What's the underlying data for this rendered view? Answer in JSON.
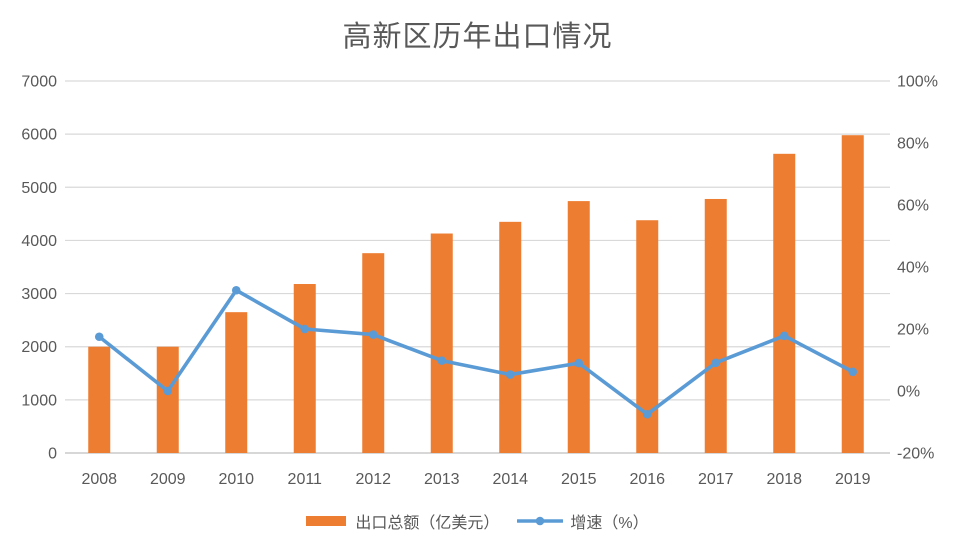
{
  "chart_data": {
    "type": "combo-bar-line",
    "title": "高新区历年出口情况",
    "categories": [
      "2008",
      "2009",
      "2010",
      "2011",
      "2012",
      "2013",
      "2014",
      "2015",
      "2016",
      "2017",
      "2018",
      "2019"
    ],
    "series": [
      {
        "name": "出口总额（亿美元）",
        "type": "bar",
        "axis": "left",
        "color": "#ED7D31",
        "values": [
          2000,
          2000,
          2650,
          3180,
          3760,
          4130,
          4350,
          4740,
          4380,
          4780,
          5630,
          5980
        ]
      },
      {
        "name": "增速（%）",
        "type": "line",
        "axis": "right",
        "color": "#5B9BD5",
        "values": [
          17.5,
          0,
          32.5,
          20.0,
          18.2,
          9.8,
          5.3,
          9.0,
          -7.5,
          9.1,
          17.8,
          6.2
        ]
      }
    ],
    "left_axis": {
      "min": 0,
      "max": 7000,
      "step": 1000,
      "ticks": [
        "0",
        "1000",
        "2000",
        "3000",
        "4000",
        "5000",
        "6000",
        "7000"
      ]
    },
    "right_axis": {
      "min": -20,
      "max": 100,
      "step": 20,
      "ticks": [
        "-20%",
        "0%",
        "20%",
        "40%",
        "60%",
        "80%",
        "100%"
      ]
    },
    "gridlines": "horizontal",
    "legend_position": "bottom",
    "colors": {
      "grid": "#D9D9D9",
      "axis_line": "#BFBFBF",
      "axis_text": "#595959",
      "title_text": "#595959",
      "background": "#FFFFFF"
    }
  }
}
